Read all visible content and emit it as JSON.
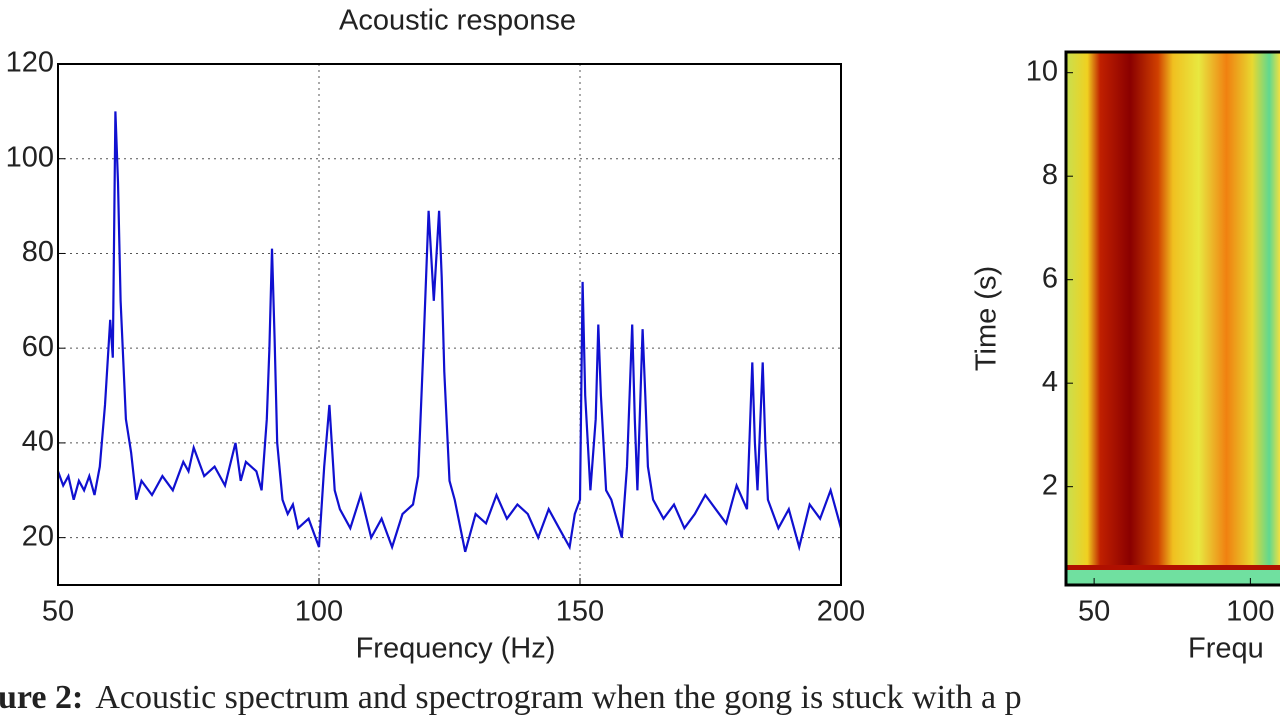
{
  "chart_data": [
    {
      "type": "line",
      "title": "Acoustic response",
      "xlabel": "Frequency (Hz)",
      "xlim": [
        50,
        200
      ],
      "xticks": [
        50,
        100,
        150,
        200
      ],
      "ylim": [
        10,
        120
      ],
      "yticks": [
        20,
        40,
        60,
        80,
        100,
        120
      ],
      "grid": true,
      "series": [
        {
          "color": "#1010d0",
          "x": [
            50,
            51,
            52,
            53,
            54,
            55,
            56,
            57,
            58,
            59,
            60,
            60.5,
            61,
            61.5,
            62,
            63,
            64,
            65,
            66,
            68,
            70,
            72,
            74,
            75,
            76,
            78,
            80,
            82,
            84,
            85,
            86,
            88,
            89,
            90,
            90.5,
            91,
            91.5,
            92,
            93,
            94,
            95,
            96,
            98,
            100,
            101,
            102,
            103,
            104,
            106,
            108,
            110,
            112,
            114,
            116,
            118,
            119,
            120,
            121,
            122,
            123,
            123.5,
            124,
            125,
            126,
            128,
            130,
            132,
            134,
            136,
            138,
            140,
            142,
            144,
            146,
            148,
            149,
            150,
            150.5,
            151,
            152,
            153,
            153.5,
            154,
            155,
            156,
            158,
            159,
            160,
            160.5,
            161,
            162,
            162.5,
            163,
            164,
            166,
            168,
            170,
            172,
            174,
            176,
            178,
            180,
            182,
            183,
            183.5,
            184,
            185,
            185.5,
            186,
            188,
            190,
            192,
            194,
            196,
            198,
            200
          ],
          "values": [
            34,
            31,
            33,
            28,
            32,
            30,
            33,
            29,
            35,
            48,
            66,
            58,
            110,
            95,
            70,
            45,
            38,
            28,
            32,
            29,
            33,
            30,
            36,
            34,
            39,
            33,
            35,
            31,
            40,
            32,
            36,
            34,
            30,
            45,
            60,
            81,
            62,
            40,
            28,
            25,
            27,
            22,
            24,
            18,
            35,
            48,
            30,
            26,
            22,
            29,
            20,
            24,
            18,
            25,
            27,
            33,
            60,
            89,
            70,
            89,
            75,
            55,
            32,
            28,
            17,
            25,
            23,
            29,
            24,
            27,
            25,
            20,
            26,
            22,
            18,
            25,
            28,
            74,
            50,
            30,
            45,
            65,
            50,
            30,
            28,
            20,
            35,
            65,
            45,
            30,
            64,
            50,
            35,
            28,
            24,
            27,
            22,
            25,
            29,
            26,
            23,
            31,
            26,
            57,
            40,
            30,
            57,
            40,
            28,
            22,
            26,
            18,
            27,
            24,
            30,
            22
          ]
        }
      ]
    },
    {
      "type": "heatmap",
      "xlabel": "Frequ",
      "ylabel": "Time (s)",
      "xlim": [
        41,
        105
      ],
      "xticks": [
        50,
        100
      ],
      "ylim": [
        0.1,
        10.4
      ],
      "yticks": [
        2,
        4,
        6,
        8,
        10
      ]
    }
  ],
  "caption": {
    "label": "ure 2:",
    "text": "Acoustic spectrum and spectrogram when the gong is stuck with a p"
  }
}
